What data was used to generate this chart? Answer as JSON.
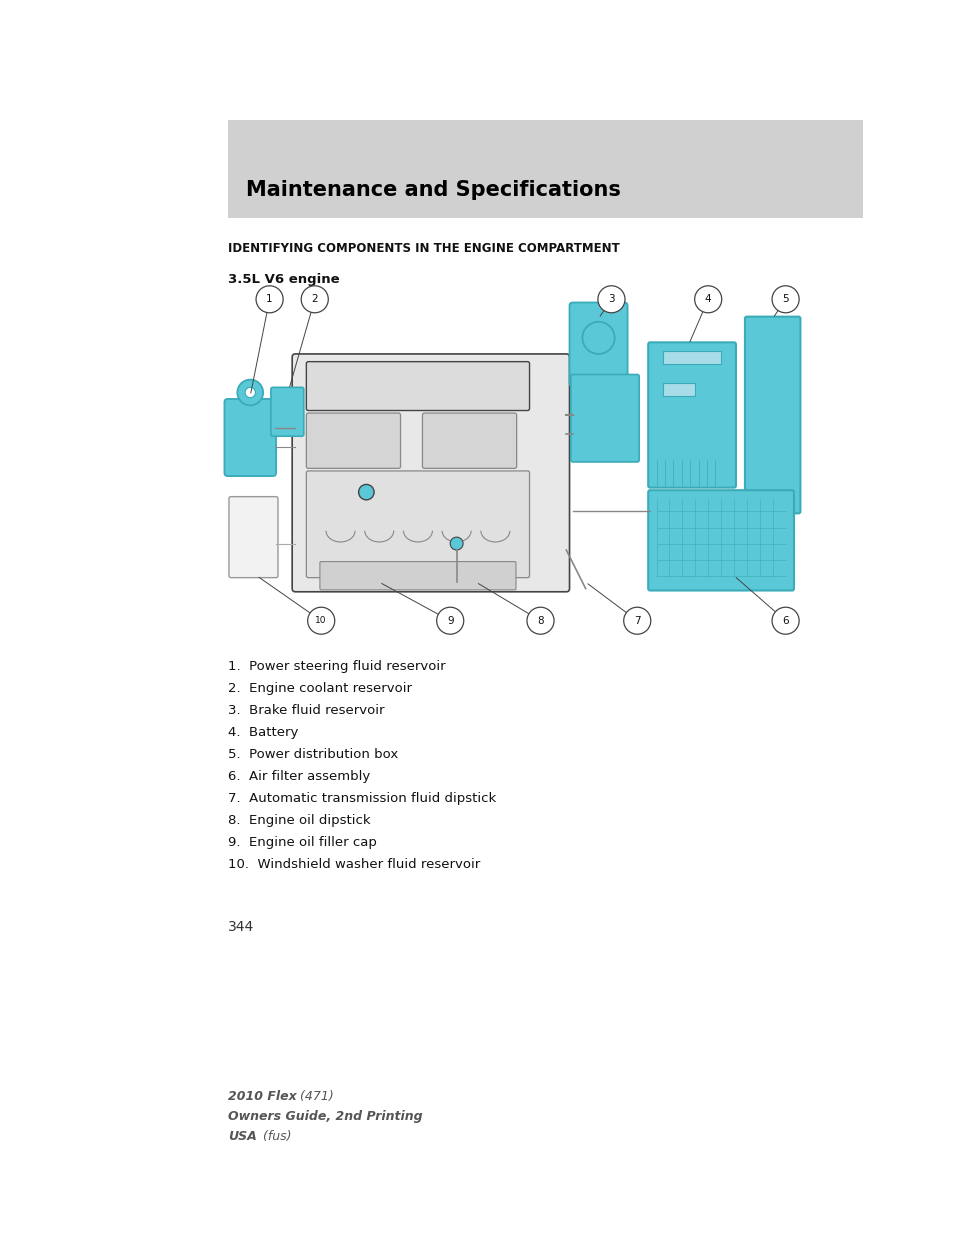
{
  "page_bg": "#ffffff",
  "header_bg": "#d0d0d0",
  "header_text": "Maintenance and Specifications",
  "header_text_color": "#000000",
  "header_text_size": 15,
  "section_title": "IDENTIFYING COMPONENTS IN THE ENGINE COMPARTMENT",
  "section_title_size": 8.5,
  "subsection_title": "3.5L V6 engine",
  "subsection_title_size": 9.5,
  "items": [
    "1.  Power steering fluid reservoir",
    "2.  Engine coolant reservoir",
    "3.  Brake fluid reservoir",
    "4.  Battery",
    "5.  Power distribution box",
    "6.  Air filter assembly",
    "7.  Automatic transmission fluid dipstick",
    "8.  Engine oil dipstick",
    "9.  Engine oil filler cap",
    "10.  Windshield washer fluid reservoir"
  ],
  "item_fontsize": 9.5,
  "page_number": "344",
  "footer_fontsize": 9,
  "cyan_color": "#5bc8d8",
  "cyan_dark": "#3aabb8",
  "engine_gray": "#c8c8c8",
  "engine_dark": "#888888",
  "line_color": "#444444"
}
